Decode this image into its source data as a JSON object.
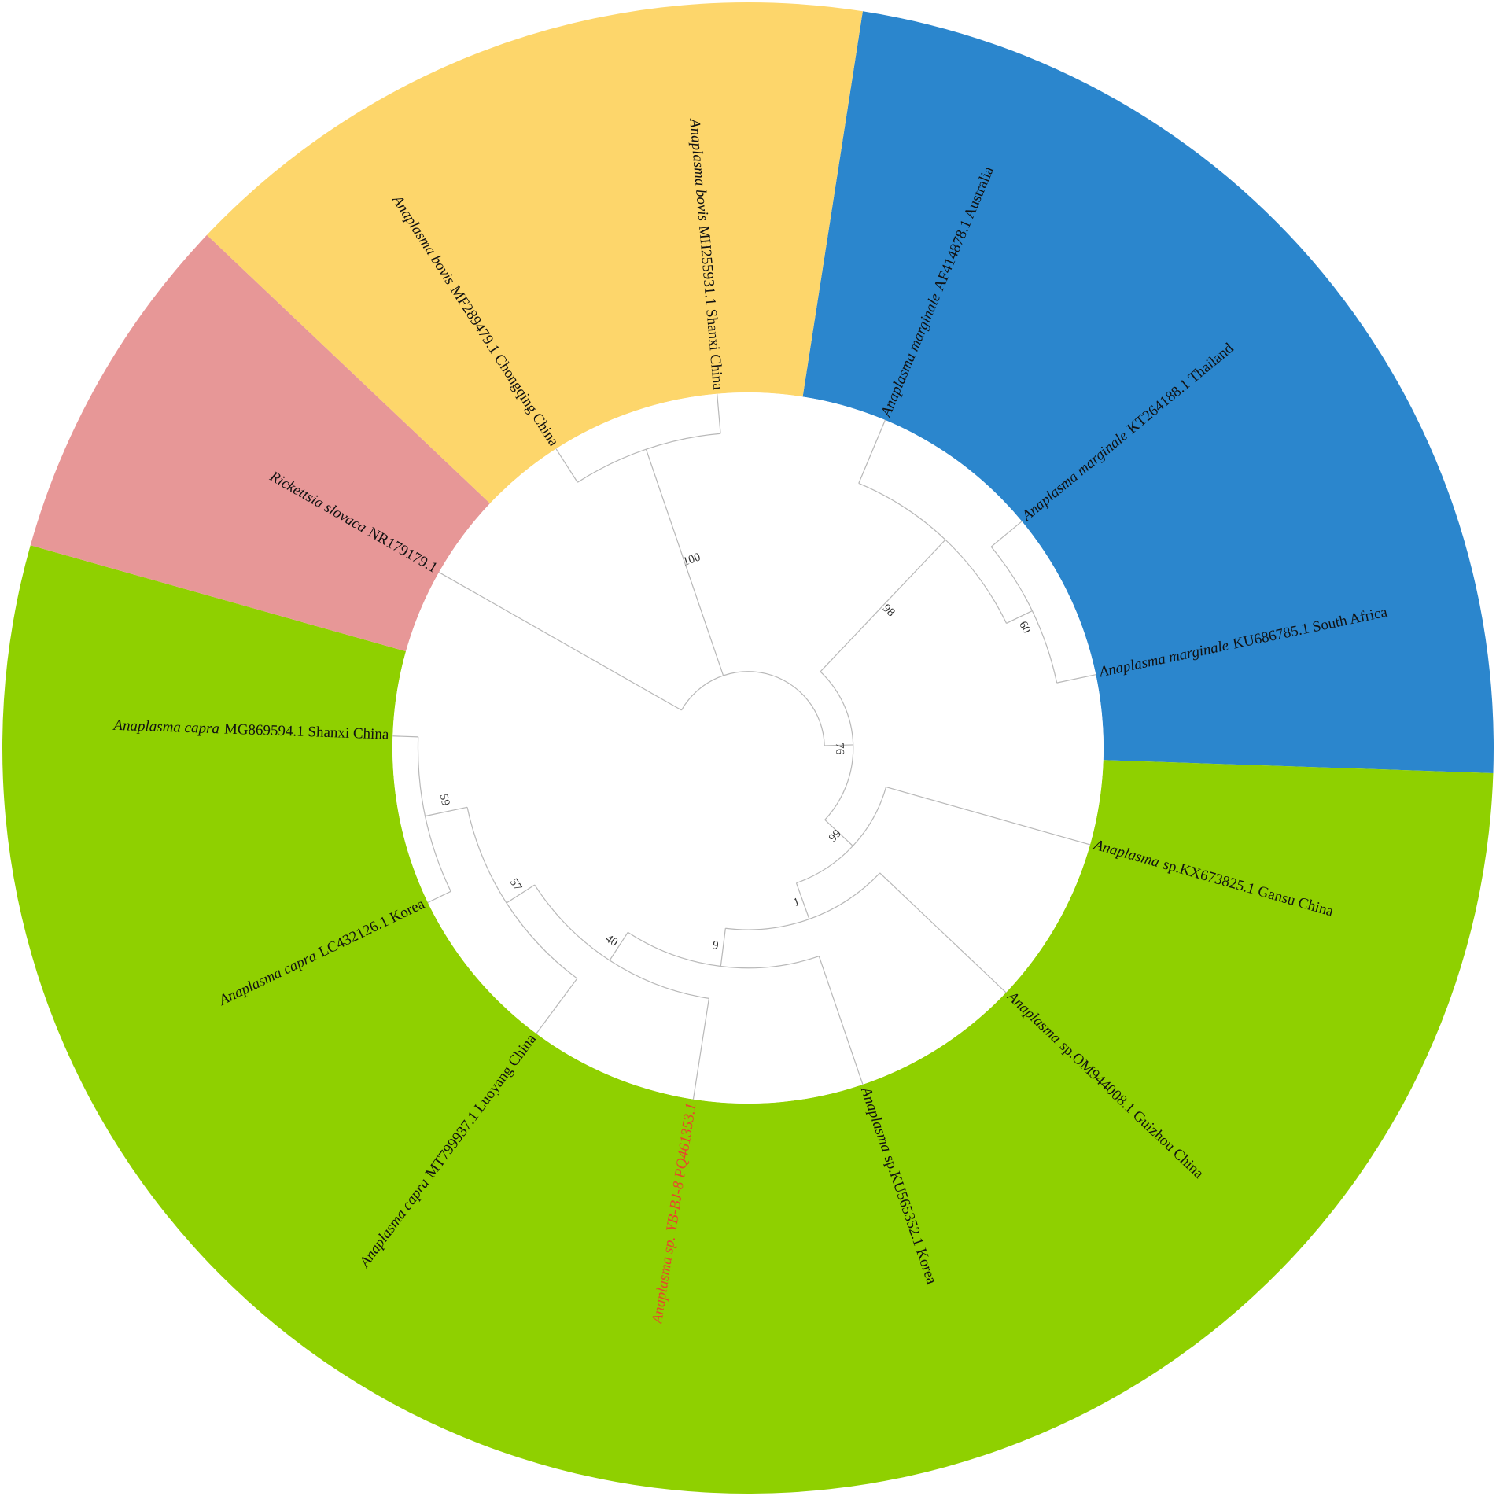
{
  "leaves": [
    {
      "species": "Anaplasma marginale",
      "label": "AF414878.1 Australia"
    },
    {
      "species": "Anaplasma marginale",
      "label": "KT264188.1 Thailand"
    },
    {
      "species": "Anaplasma marginale",
      "label": "KU686785.1 South Africa"
    },
    {
      "species": "Anaplasma",
      "label": "sp.KX673825.1 Gansu China"
    },
    {
      "species": "Anaplasma",
      "label": "sp.OM944008.1 Guizhou China"
    },
    {
      "species": "Anaplasma",
      "label": "sp.KU565352.1 Korea"
    },
    {
      "species": "Anaplasma sp.",
      "label": "YB-BJ-8 PQ461353.1"
    },
    {
      "species": "Anaplasma capra",
      "label": "MT799937.1 Luoyang China"
    },
    {
      "species": "Anaplasma capra",
      "label": "LC432126.1 Korea"
    },
    {
      "species": "Anaplasma capra",
      "label": "MG869594.1 Shanxi China"
    },
    {
      "species": "Rickettsia slovaca",
      "label": "NR179179.1"
    },
    {
      "species": "Anaplasma bovis",
      "label": "MF289479.1 Chongqing China"
    },
    {
      "species": "Anaplasma bovis",
      "label": "MH255931.1 Shanxi China"
    }
  ],
  "bootstrap": [
    100,
    98,
    60,
    76,
    99,
    1,
    9,
    40,
    57,
    59
  ]
}
